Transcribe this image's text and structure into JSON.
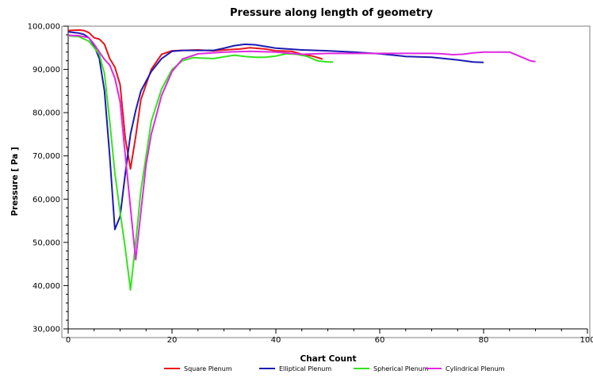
{
  "chart_data": {
    "type": "line",
    "title": "Pressure along length of geometry",
    "xlabel": "Chart Count",
    "ylabel": "Pressure [ Pa ]",
    "xlim": [
      0,
      100
    ],
    "ylim": [
      30000,
      100000
    ],
    "x_ticks": [
      0,
      20,
      40,
      60,
      80,
      100
    ],
    "x_tick_labels": [
      "0",
      "20",
      "40",
      "60",
      "80",
      "100"
    ],
    "y_ticks": [
      30000,
      40000,
      50000,
      60000,
      70000,
      80000,
      90000,
      100000
    ],
    "y_tick_labels": [
      "30,000",
      "40,000",
      "50,000",
      "60,000",
      "70,000",
      "80,000",
      "90,000",
      "100,000"
    ],
    "grid": false,
    "legend_position": "bottom",
    "series": [
      {
        "name": "Square Plenum",
        "color": "#e8141b",
        "points": [
          [
            0,
            99000
          ],
          [
            2,
            99100
          ],
          [
            3,
            99000
          ],
          [
            4,
            98500
          ],
          [
            5,
            97300
          ],
          [
            6,
            97000
          ],
          [
            7,
            95800
          ],
          [
            8,
            92500
          ],
          [
            9,
            90500
          ],
          [
            10,
            86500
          ],
          [
            11,
            74000
          ],
          [
            12,
            67000
          ],
          [
            13,
            74500
          ],
          [
            14,
            83000
          ],
          [
            16,
            90000
          ],
          [
            18,
            93500
          ],
          [
            20,
            94300
          ],
          [
            22,
            94400
          ],
          [
            25,
            94500
          ],
          [
            28,
            94300
          ],
          [
            30,
            94500
          ],
          [
            33,
            94700
          ],
          [
            35,
            95000
          ],
          [
            38,
            94700
          ],
          [
            40,
            94300
          ],
          [
            43,
            94200
          ],
          [
            45,
            93500
          ],
          [
            47,
            93100
          ],
          [
            49,
            92400
          ]
        ]
      },
      {
        "name": "Elliptical Plenum",
        "color": "#1c1ab2",
        "points": [
          [
            0,
            98700
          ],
          [
            2,
            98400
          ],
          [
            3,
            98100
          ],
          [
            4,
            97300
          ],
          [
            5,
            95500
          ],
          [
            6,
            92500
          ],
          [
            7,
            85000
          ],
          [
            8,
            70000
          ],
          [
            9,
            53000
          ],
          [
            10,
            56000
          ],
          [
            11,
            66000
          ],
          [
            12,
            75000
          ],
          [
            13,
            80500
          ],
          [
            14,
            85000
          ],
          [
            16,
            89500
          ],
          [
            18,
            92500
          ],
          [
            20,
            94200
          ],
          [
            22,
            94400
          ],
          [
            25,
            94400
          ],
          [
            28,
            94400
          ],
          [
            30,
            94900
          ],
          [
            32,
            95500
          ],
          [
            34,
            95800
          ],
          [
            36,
            95700
          ],
          [
            38,
            95300
          ],
          [
            40,
            94900
          ],
          [
            45,
            94500
          ],
          [
            50,
            94300
          ],
          [
            55,
            94000
          ],
          [
            60,
            93600
          ],
          [
            65,
            93000
          ],
          [
            70,
            92800
          ],
          [
            75,
            92200
          ],
          [
            78,
            91700
          ],
          [
            80,
            91600
          ]
        ]
      },
      {
        "name": "Spherical Plenum",
        "color": "#35e31f",
        "points": [
          [
            0,
            97800
          ],
          [
            2,
            97600
          ],
          [
            4,
            96500
          ],
          [
            5,
            95000
          ],
          [
            6,
            93500
          ],
          [
            7,
            89000
          ],
          [
            8,
            78000
          ],
          [
            9,
            66000
          ],
          [
            10,
            57000
          ],
          [
            11,
            48500
          ],
          [
            12,
            39000
          ],
          [
            13,
            50000
          ],
          [
            14,
            62000
          ],
          [
            15,
            70000
          ],
          [
            16,
            78000
          ],
          [
            18,
            85500
          ],
          [
            20,
            90000
          ],
          [
            22,
            92000
          ],
          [
            24,
            92700
          ],
          [
            26,
            92600
          ],
          [
            28,
            92500
          ],
          [
            30,
            92900
          ],
          [
            32,
            93300
          ],
          [
            34,
            93000
          ],
          [
            36,
            92800
          ],
          [
            38,
            92800
          ],
          [
            40,
            93100
          ],
          [
            42,
            93600
          ],
          [
            44,
            93500
          ],
          [
            46,
            93000
          ],
          [
            48,
            92000
          ],
          [
            50,
            91700
          ],
          [
            51,
            91700
          ]
        ]
      },
      {
        "name": "Cylindrical Plenum",
        "color": "#e028e0",
        "points": [
          [
            0,
            97900
          ],
          [
            2,
            97800
          ],
          [
            4,
            97300
          ],
          [
            5,
            95800
          ],
          [
            6,
            94000
          ],
          [
            7,
            92300
          ],
          [
            8,
            91000
          ],
          [
            9,
            88000
          ],
          [
            10,
            82500
          ],
          [
            11,
            70000
          ],
          [
            12,
            58000
          ],
          [
            13,
            46000
          ],
          [
            14,
            57000
          ],
          [
            15,
            68000
          ],
          [
            16,
            75000
          ],
          [
            18,
            84000
          ],
          [
            20,
            89500
          ],
          [
            22,
            92400
          ],
          [
            25,
            93600
          ],
          [
            30,
            94000
          ],
          [
            35,
            94200
          ],
          [
            40,
            94000
          ],
          [
            45,
            93500
          ],
          [
            50,
            93700
          ],
          [
            55,
            93700
          ],
          [
            60,
            93700
          ],
          [
            65,
            93700
          ],
          [
            70,
            93700
          ],
          [
            72,
            93600
          ],
          [
            74,
            93400
          ],
          [
            76,
            93500
          ],
          [
            78,
            93800
          ],
          [
            80,
            94000
          ],
          [
            85,
            94000
          ],
          [
            87,
            93000
          ],
          [
            89,
            92000
          ],
          [
            90,
            91800
          ]
        ]
      }
    ]
  }
}
